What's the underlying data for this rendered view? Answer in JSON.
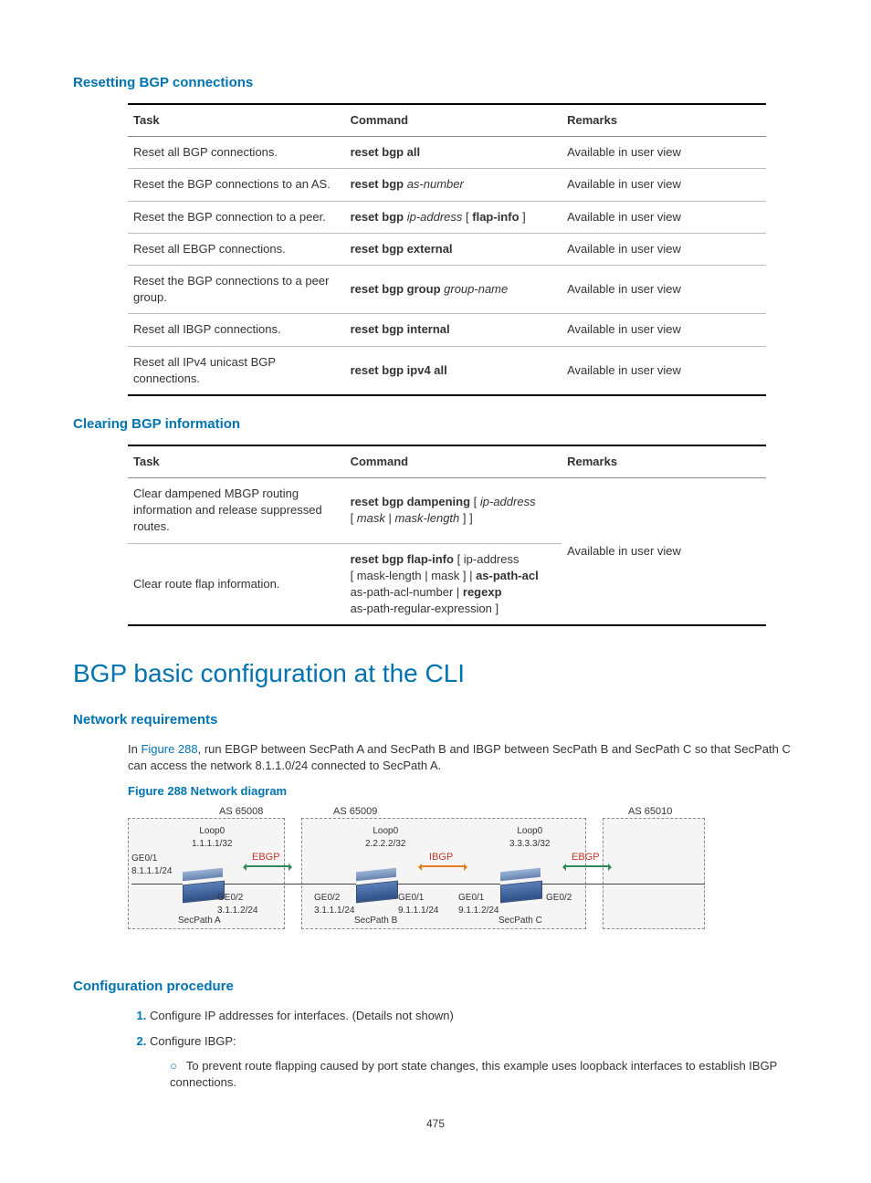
{
  "headings": {
    "h1": "Resetting BGP connections",
    "h2": "Clearing BGP information",
    "section": "BGP basic configuration at the CLI",
    "netreq": "Network requirements",
    "figcap": "Figure 288 Network diagram",
    "confproc": "Configuration procedure"
  },
  "table_headers": {
    "task": "Task",
    "cmd": "Command",
    "rmk": "Remarks"
  },
  "remarks_text": "Available in user view",
  "table1": [
    {
      "task": "Reset all BGP connections.",
      "cmd_b": "reset bgp all"
    },
    {
      "task": "Reset the BGP connections to an AS.",
      "cmd_b": "reset bgp ",
      "cmd_i": "as-number"
    },
    {
      "task": "Reset the BGP connection to a peer.",
      "cmd_html": "<span class='bold'>reset bgp</span> <span class='ital'>ip-address</span> [ <span class='bold'>flap-info</span> ]"
    },
    {
      "task": "Reset all EBGP connections.",
      "cmd_b": "reset bgp external"
    },
    {
      "task": "Reset the BGP connections to a peer group.",
      "cmd_html": "<span class='bold'>reset bgp group</span> <span class='ital'>group-name</span>"
    },
    {
      "task": "Reset all IBGP connections.",
      "cmd_b": "reset bgp internal"
    },
    {
      "task": "Reset all IPv4 unicast BGP connections.",
      "cmd_b": "reset bgp ipv4 all"
    }
  ],
  "table2": [
    {
      "task": "Clear dampened MBGP routing information and release suppressed routes.",
      "cmd_html": "<span class='bold'>reset bgp dampening</span> [ <span class='ital'>ip-address</span><br>[ <span class='ital'>mask</span> | <span class='ital'>mask-length</span> ] ]"
    },
    {
      "task": "Clear route flap information.",
      "cmd_html": "<span class='bold'>reset bgp flap-info</span> [ ip-address<br>[ mask-length | mask ] | <span class='bold'>as-path-acl</span><br>as-path-acl-number | <span class='bold'>regexp</span><br>as-path-regular-expression ]"
    }
  ],
  "netreq_text_pre": "In ",
  "netreq_link": "Figure 288",
  "netreq_text_post": ", run EBGP between SecPath A and SecPath B and IBGP between SecPath B and SecPath C so that SecPath C can access the network 8.1.1.0/24 connected to SecPath A.",
  "proc": {
    "step1": "Configure IP addresses for interfaces. (Details not shown)",
    "step2": "Configure IBGP:",
    "step2sub": "To prevent route flapping caused by port state changes, this example uses loopback interfaces to establish IBGP connections."
  },
  "diagram": {
    "as": {
      "a": "AS 65008",
      "b": "AS 65009",
      "c": "AS 65010"
    },
    "nodes": {
      "a": "SecPath A",
      "b": "SecPath B",
      "c": "SecPath C"
    },
    "loop": {
      "a": "Loop0\n1.1.1.1/32",
      "b": "Loop0\n2.2.2.2/32",
      "c": "Loop0\n3.3.3.3/32"
    },
    "if": {
      "a1": "GE0/1\n8.1.1.1/24",
      "a2": "GE0/2\n3.1.1.2/24",
      "b2": "GE0/2\n3.1.1.1/24",
      "b1": "GE0/1\n9.1.1.1/24",
      "c1": "GE0/1\n9.1.1.2/24",
      "c2": "GE0/2"
    },
    "proto": {
      "ebgp": "EBGP",
      "ibgp": "IBGP"
    }
  },
  "page": "475"
}
